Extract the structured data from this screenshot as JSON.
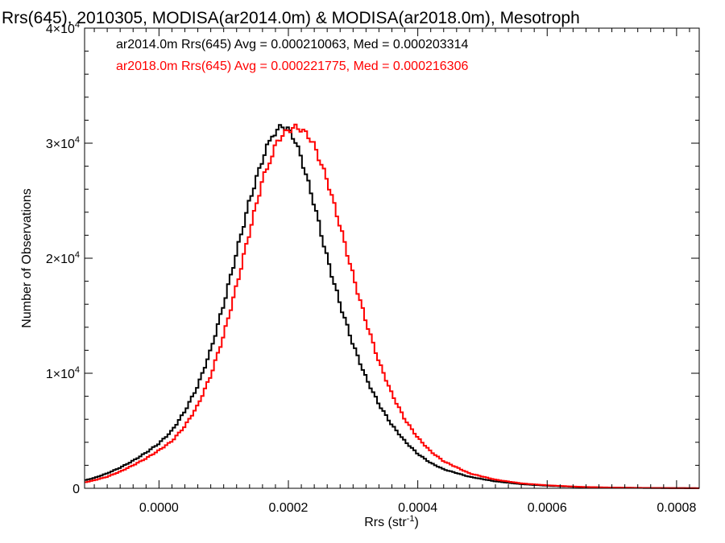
{
  "chart_data": {
    "type": "line",
    "title": "Rrs(645), 2010305, MODISA(ar2014.0m) & MODISA(ar2018.0m), Mesotroph",
    "xlabel": "Rrs (str",
    "xlabel_sup": "-1",
    "xlabel_close": ")",
    "ylabel": "Number of Observations",
    "xlim": [
      -0.000115,
      0.000835
    ],
    "ylim": [
      0,
      40000
    ],
    "xticks": [
      {
        "value": 0.0,
        "label": "0.0000"
      },
      {
        "value": 0.0002,
        "label": "0.0002"
      },
      {
        "value": 0.0004,
        "label": "0.0004"
      },
      {
        "value": 0.0006,
        "label": "0.0006"
      },
      {
        "value": 0.0008,
        "label": "0.0008"
      }
    ],
    "yticks": [
      {
        "value": 0,
        "mant": "0",
        "exp": ""
      },
      {
        "value": 10000,
        "mant": "1×10",
        "exp": "4"
      },
      {
        "value": 20000,
        "mant": "2×10",
        "exp": "4"
      },
      {
        "value": 30000,
        "mant": "3×10",
        "exp": "4"
      },
      {
        "value": 40000,
        "mant": "4×10",
        "exp": "4"
      }
    ],
    "grid": false,
    "legend_position": "top-left",
    "series": [
      {
        "name": "ar2014.0m Rrs(645) Avg = 0.000210063, Med = 0.000203314",
        "color": "#000000",
        "x": [
          -0.000115,
          -0.0001,
          -8e-05,
          -6e-05,
          -4e-05,
          -2e-05,
          0.0,
          2e-05,
          4e-05,
          6e-05,
          8e-05,
          0.0001,
          0.00012,
          0.00014,
          0.00016,
          0.00017,
          0.00018,
          0.00019,
          0.0002,
          0.00021,
          0.00022,
          0.00024,
          0.00026,
          0.00028,
          0.0003,
          0.00032,
          0.00034,
          0.00036,
          0.00038,
          0.0004,
          0.00042,
          0.00044,
          0.00048,
          0.00052,
          0.00056,
          0.0006,
          0.00065,
          0.0007,
          0.00075,
          0.0008,
          0.000835
        ],
        "y": [
          700,
          900,
          1300,
          1800,
          2400,
          3100,
          3900,
          5000,
          6700,
          8900,
          12000,
          16000,
          20500,
          25000,
          28600,
          30100,
          31000,
          31500,
          31200,
          30300,
          28700,
          24700,
          20000,
          16000,
          12500,
          9600,
          7300,
          5500,
          4100,
          3000,
          2200,
          1650,
          1000,
          600,
          360,
          220,
          110,
          55,
          30,
          15,
          10
        ]
      },
      {
        "name": "ar2018.0m Rrs(645) Avg = 0.000221775, Med = 0.000216306",
        "color": "#ff0000",
        "x": [
          -0.000115,
          -0.0001,
          -8e-05,
          -6e-05,
          -4e-05,
          -2e-05,
          0.0,
          2e-05,
          4e-05,
          6e-05,
          8e-05,
          0.0001,
          0.00012,
          0.00014,
          0.00016,
          0.00018,
          0.00019,
          0.0002,
          0.00021,
          0.00022,
          0.00023,
          0.00024,
          0.00026,
          0.00028,
          0.0003,
          0.00032,
          0.00034,
          0.00036,
          0.00038,
          0.0004,
          0.00042,
          0.00044,
          0.00048,
          0.00052,
          0.00056,
          0.0006,
          0.00065,
          0.0007,
          0.00075,
          0.0008,
          0.000835
        ],
        "y": [
          500,
          700,
          1000,
          1450,
          2000,
          2600,
          3300,
          4100,
          5400,
          7200,
          9800,
          13300,
          17600,
          22300,
          26800,
          29800,
          30700,
          31100,
          31400,
          31200,
          30700,
          29800,
          26800,
          22800,
          18500,
          14500,
          11000,
          8200,
          6000,
          4400,
          3200,
          2350,
          1300,
          750,
          430,
          260,
          130,
          65,
          35,
          18,
          12
        ]
      }
    ]
  }
}
